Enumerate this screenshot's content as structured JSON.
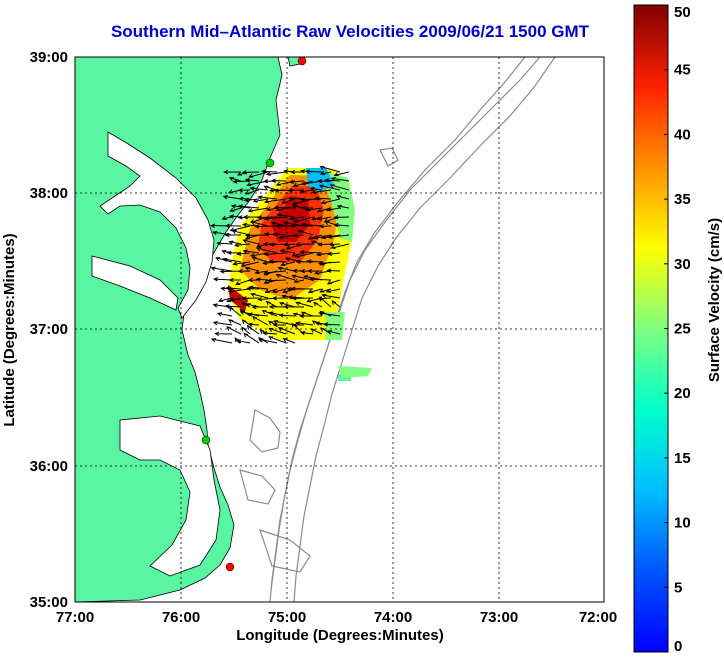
{
  "chart_data": {
    "type": "heatmap",
    "title": "Southern Mid–Atlantic Raw Velocities 2009/06/21 1500 GMT",
    "xlabel": "Longitude (Degrees:Minutes)",
    "ylabel": "Latitude (Degrees:Minutes)",
    "xlim": [
      -77,
      -72
    ],
    "ylim": [
      35,
      39
    ],
    "x_ticks": [
      -77,
      -76,
      -75,
      -74,
      -73,
      -72
    ],
    "x_tick_labels": [
      "77:00",
      "76:00",
      "75:00",
      "74:00",
      "73:00",
      "72:00"
    ],
    "y_ticks": [
      35,
      36,
      37,
      38,
      39
    ],
    "y_tick_labels": [
      "35:00",
      "36:00",
      "37:00",
      "38:00",
      "39:00"
    ],
    "grid": "dotted",
    "colorbar": {
      "label": "Surface Velocity (cm/s)",
      "range": [
        0,
        50
      ],
      "ticks": [
        0,
        5,
        10,
        15,
        20,
        25,
        30,
        35,
        40,
        45,
        50
      ],
      "tick_labels": [
        "0",
        "5",
        "10",
        "15",
        "20",
        "25",
        "30",
        "35",
        "40",
        "45",
        "50"
      ],
      "colormap": "jet"
    },
    "velocity_field": {
      "region_lon": [
        -75.6,
        -74.4
      ],
      "region_lat": [
        36.93,
        38.2
      ],
      "speed_range_cm_s": [
        10,
        50
      ],
      "main_direction": "toward west"
    },
    "stations": [
      {
        "lon": -74.85,
        "lat": 39.0,
        "color": "#ff0000"
      },
      {
        "lon": -75.15,
        "lat": 38.2,
        "color": "#00cc00"
      },
      {
        "lon": -75.75,
        "lat": 36.17,
        "color": "#00cc00"
      },
      {
        "lon": -75.52,
        "lat": 35.26,
        "color": "#ff0000"
      }
    ],
    "colors": {
      "land": "#5af5a2",
      "land_outline": "#000000",
      "bathymetry": "#888888",
      "arrows": "#000000"
    }
  }
}
